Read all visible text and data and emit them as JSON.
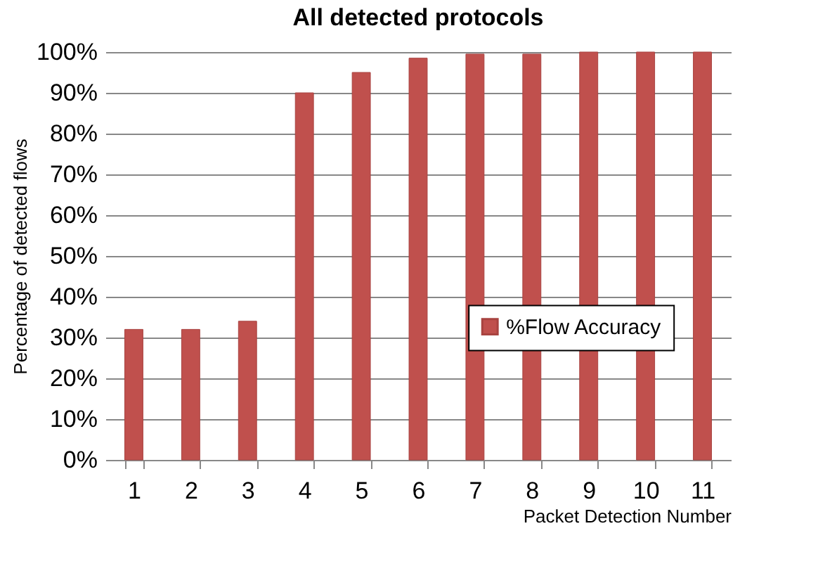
{
  "chart_data": {
    "type": "bar",
    "title": "All detected protocols",
    "xlabel": "Packet Detection Number",
    "ylabel": "Percentage of detected flows",
    "categories": [
      "1",
      "2",
      "3",
      "4",
      "5",
      "6",
      "7",
      "8",
      "9",
      "10",
      "11"
    ],
    "series": [
      {
        "name": "%Flow Accuracy",
        "color": "#c0504d",
        "values": [
          32,
          32,
          34,
          90,
          95,
          98.5,
          99.5,
          99.5,
          100,
          100,
          100
        ]
      }
    ],
    "ylim": [
      0,
      100
    ],
    "yticks": [
      {
        "value": 0,
        "label": "0%"
      },
      {
        "value": 10,
        "label": "10%"
      },
      {
        "value": 20,
        "label": "20%"
      },
      {
        "value": 30,
        "label": "30%"
      },
      {
        "value": 40,
        "label": "40%"
      },
      {
        "value": 50,
        "label": "50%"
      },
      {
        "value": 60,
        "label": "60%"
      },
      {
        "value": 70,
        "label": "70%"
      },
      {
        "value": 80,
        "label": "80%"
      },
      {
        "value": 90,
        "label": "90%"
      },
      {
        "value": 100,
        "label": "100%"
      }
    ],
    "grid": "y",
    "legend": "right"
  }
}
